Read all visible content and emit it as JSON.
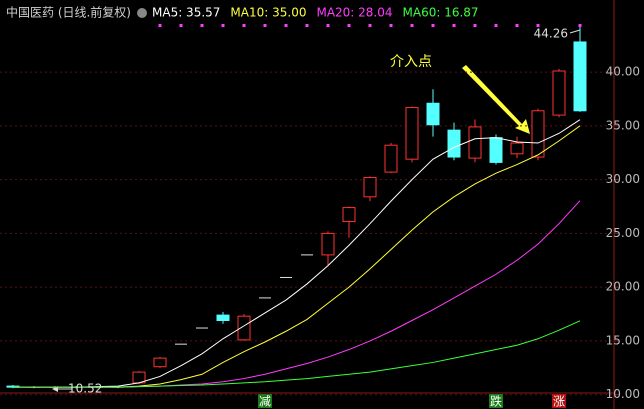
{
  "chart_data": {
    "type": "candlestick",
    "title": "中国医药 (日线.前复权)",
    "categories": [
      null,
      null,
      null,
      null,
      null,
      null,
      null,
      null,
      null,
      null,
      null,
      null,
      null,
      null,
      null,
      null,
      null,
      null,
      null,
      null,
      null,
      null,
      null,
      null,
      null,
      null,
      null,
      null
    ],
    "open": [
      10.8,
      10.7,
      10.7,
      10.7,
      10.7,
      10.7,
      11.1,
      12.6,
      14.7,
      16.2,
      17.4,
      15.1,
      19.0,
      20.9,
      23.0,
      23.0,
      26.1,
      28.4,
      30.7,
      31.9,
      37.1,
      34.6,
      32.0,
      33.9,
      32.4,
      32.1,
      36.0,
      42.8
    ],
    "close": [
      10.7,
      10.7,
      10.7,
      10.7,
      10.7,
      10.7,
      12.1,
      13.4,
      14.7,
      16.2,
      16.9,
      17.3,
      19.0,
      20.9,
      23.0,
      25.0,
      27.4,
      30.2,
      33.2,
      36.7,
      35.1,
      32.1,
      34.9,
      31.6,
      33.4,
      36.4,
      40.1,
      36.4
    ],
    "high": [
      10.9,
      10.8,
      10.8,
      10.8,
      10.8,
      10.8,
      12.2,
      13.5,
      14.7,
      16.2,
      17.7,
      17.5,
      19.0,
      20.9,
      23.0,
      25.2,
      27.5,
      30.3,
      33.4,
      36.8,
      38.4,
      35.3,
      35.6,
      34.2,
      34.0,
      36.6,
      40.3,
      44.26
    ],
    "low": [
      10.6,
      10.6,
      10.52,
      10.6,
      10.6,
      10.6,
      11.0,
      12.5,
      14.7,
      16.2,
      16.6,
      15.0,
      19.0,
      20.9,
      23.0,
      22.0,
      24.6,
      28.0,
      30.6,
      31.6,
      34.0,
      31.8,
      31.6,
      31.4,
      32.0,
      31.8,
      35.8,
      36.3
    ],
    "up_color": "#ff3232",
    "down_color": "#54ffff",
    "flat_color": "#e0e0e0",
    "series": [
      {
        "name": "MA5: 35.57",
        "color": "#ffffff",
        "values": [
          10.7,
          10.7,
          10.7,
          10.7,
          10.75,
          10.8,
          11.1,
          11.7,
          12.7,
          13.8,
          15.2,
          16.4,
          17.6,
          18.8,
          20.3,
          22.0,
          23.9,
          25.9,
          28.0,
          30.0,
          31.9,
          33.0,
          33.8,
          33.9,
          33.5,
          33.4,
          34.3,
          35.57
        ]
      },
      {
        "name": "MA10: 35.00",
        "color": "#ffff3c",
        "values": [
          10.7,
          10.7,
          10.7,
          10.7,
          10.7,
          10.7,
          10.8,
          11.0,
          11.4,
          11.9,
          13.0,
          14.0,
          14.9,
          15.9,
          17.0,
          18.5,
          20.0,
          21.7,
          23.5,
          25.3,
          27.0,
          28.4,
          29.6,
          30.6,
          31.4,
          32.3,
          33.6,
          35.0
        ]
      },
      {
        "name": "MA20: 28.04",
        "color": "#ff3cff",
        "values": [
          10.7,
          10.7,
          10.7,
          10.7,
          10.7,
          10.7,
          10.75,
          10.8,
          10.9,
          11.0,
          11.2,
          11.5,
          11.9,
          12.4,
          12.9,
          13.5,
          14.2,
          15.0,
          15.9,
          16.9,
          17.9,
          19.0,
          20.1,
          21.2,
          22.5,
          24.0,
          25.9,
          28.04
        ]
      },
      {
        "name": "MA60: 16.87",
        "color": "#3cff3c",
        "values": [
          10.7,
          10.7,
          10.7,
          10.7,
          10.7,
          10.7,
          10.75,
          10.8,
          10.85,
          10.9,
          11.0,
          11.1,
          11.2,
          11.35,
          11.5,
          11.7,
          11.9,
          12.1,
          12.4,
          12.7,
          13.0,
          13.4,
          13.8,
          14.2,
          14.6,
          15.2,
          16.0,
          16.87
        ]
      }
    ],
    "ylim": [
      9.6,
      45.4
    ],
    "yticks": [
      {
        "value": 10,
        "label": "10.00"
      },
      {
        "value": 15,
        "label": "15.00"
      },
      {
        "value": 20,
        "label": "20.00"
      },
      {
        "value": 25,
        "label": "25.00"
      },
      {
        "value": 30,
        "label": "30.00"
      },
      {
        "value": 35,
        "label": "35.00"
      },
      {
        "value": 40,
        "label": "40.00"
      }
    ],
    "grid": true,
    "annotation": "介入点",
    "max_index": 27,
    "min_index": 2,
    "signals": [
      {
        "index": 12,
        "label": "减"
      },
      {
        "index": 23,
        "label": "跌"
      },
      {
        "index": 26,
        "label": "涨"
      }
    ],
    "top_markers": [
      7,
      8,
      9,
      10,
      11,
      12,
      13,
      14,
      15,
      16,
      17,
      18,
      19,
      20,
      21,
      22,
      23,
      24,
      25,
      27
    ]
  }
}
